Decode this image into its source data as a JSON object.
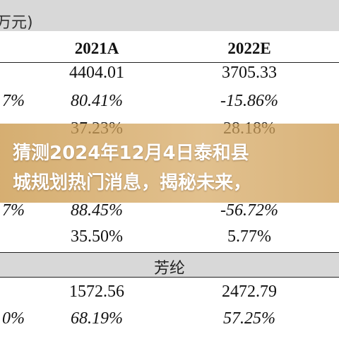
{
  "table": {
    "unit_label": "万元)",
    "columns": [
      "2021A",
      "2022E"
    ],
    "rows": [
      {
        "left": "",
        "c1": "4404.01",
        "c2": "3705.33"
      },
      {
        "left": "7%",
        "c1": "80.41%",
        "c2": "-15.86%"
      },
      {
        "left": "",
        "c1": "37.23%",
        "c2": "28.18%"
      },
      {
        "left": "7%",
        "c1": "88.45%",
        "c2": "-56.72%"
      },
      {
        "left": "",
        "c1": "35.50%",
        "c2": "5.77%"
      }
    ],
    "category": "芳纶",
    "rows2": [
      {
        "left": "",
        "c1": "1572.56",
        "c2": "2472.79"
      },
      {
        "left": "0%",
        "c1": "68.19%",
        "c2": "57.25%"
      }
    ]
  },
  "overlay": {
    "headline": "猜测2024年12月4日泰和县\n城规划热门消息，揭秘未来，",
    "color": "#c99a4e"
  }
}
